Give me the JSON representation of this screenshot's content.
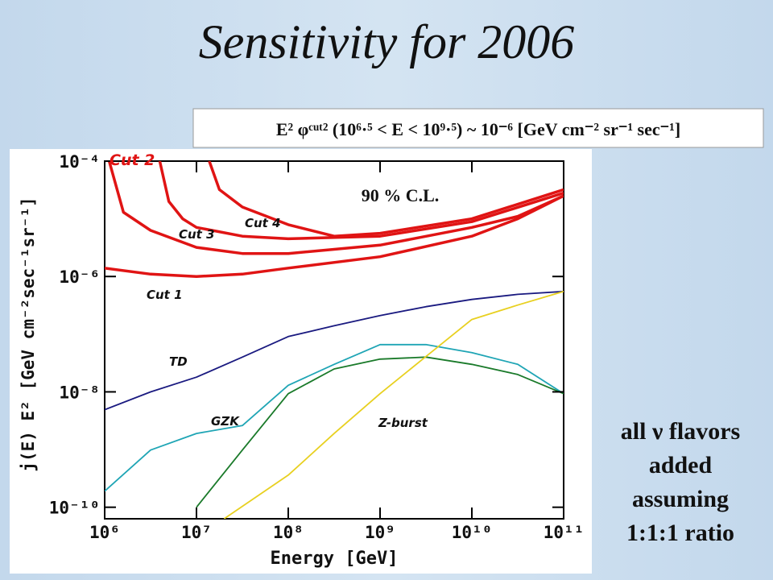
{
  "chart_data": {
    "type": "line",
    "title": "Sensitivity for 2006",
    "subtitle": "E² φᶜᵘᵗ² (10⁶·⁵ < E < 10⁹·⁵) ~ 10⁻⁶ [GeV cm⁻² sr⁻¹ sec⁻¹]",
    "annotation": "90 % C.L.",
    "side_note": [
      "all ν flavors",
      "added",
      "assuming",
      "1:1:1 ratio"
    ],
    "x_label": "Energy [GeV]",
    "y_label": "j(E)  E²  [GeV cm⁻²sec⁻¹sr⁻¹]",
    "log_x": true,
    "log_y": true,
    "xlim": [
      1000000.0,
      100000000000.0
    ],
    "ylim": [
      6.31e-11,
      0.0001
    ],
    "xticks": [
      {
        "value": 1000000.0,
        "label": "10⁶"
      },
      {
        "value": 10000000.0,
        "label": "10⁷"
      },
      {
        "value": 100000000.0,
        "label": "10⁸"
      },
      {
        "value": 1000000000.0,
        "label": "10⁹"
      },
      {
        "value": 10000000000.0,
        "label": "10¹⁰"
      },
      {
        "value": 100000000000.0,
        "label": "10¹¹"
      }
    ],
    "yticks": [
      {
        "value": 1e-10,
        "label": "10⁻¹⁰"
      },
      {
        "value": 1e-08,
        "label": "10⁻⁸"
      },
      {
        "value": 1e-06,
        "label": "10⁻⁶"
      },
      {
        "value": 0.0001,
        "label": "10⁻⁴"
      }
    ],
    "series": [
      {
        "name": "Cut 2",
        "color": "#e01414",
        "x": [
          1120000.0,
          1600000.0,
          3160000.0,
          10000000.0,
          31600000.0,
          100000000.0,
          1000000000.0,
          10000000000.0,
          31600000000.0,
          100000000000.0
        ],
        "values": [
          0.0001,
          1.3e-05,
          6.3e-06,
          3.2e-06,
          2.5e-06,
          2.5e-06,
          3.5e-06,
          7.1e-06,
          1.1e-05,
          2.5e-05
        ]
      },
      {
        "name": "Cut 3",
        "color": "#e01414",
        "x": [
          3980000.0,
          5000000.0,
          7080000.0,
          10000000.0,
          31600000.0,
          100000000.0,
          1000000000.0,
          10000000000.0,
          100000000000.0
        ],
        "values": [
          0.0001,
          2e-05,
          1e-05,
          7.1e-06,
          5e-06,
          4.5e-06,
          5e-06,
          8.9e-06,
          2.8e-05
        ]
      },
      {
        "name": "Cut 4",
        "color": "#e01414",
        "x": [
          13800000.0,
          17800000.0,
          31600000.0,
          100000000.0,
          316000000.0,
          1000000000.0,
          10000000000.0,
          100000000000.0
        ],
        "values": [
          0.0001,
          3.2e-05,
          1.6e-05,
          7.9e-06,
          5e-06,
          5.6e-06,
          1e-05,
          3.2e-05
        ]
      },
      {
        "name": "Cut 1",
        "color": "#e01414",
        "x": [
          1000000.0,
          3160000.0,
          10000000.0,
          31600000.0,
          100000000.0,
          1000000000.0,
          10000000000.0,
          31600000000.0,
          100000000000.0
        ],
        "values": [
          1.4e-06,
          1.1e-06,
          1e-06,
          1.1e-06,
          1.4e-06,
          2.2e-06,
          5e-06,
          1e-05,
          2.5e-05
        ]
      },
      {
        "name": "TD",
        "color": "#1a1a80",
        "x": [
          1000000.0,
          3160000.0,
          10000000.0,
          31600000.0,
          100000000.0,
          316000000.0,
          1000000000.0,
          3160000000.0,
          10000000000.0,
          31600000000.0,
          100000000000.0
        ],
        "values": [
          4.9e-09,
          1e-08,
          1.8e-08,
          4e-08,
          9.1e-08,
          1.4e-07,
          2.1e-07,
          3e-07,
          4e-07,
          4.9e-07,
          5.5e-07
        ]
      },
      {
        "name": "GZK",
        "color": "#1fa5b5",
        "x": [
          1000000.0,
          3160000.0,
          10000000.0,
          31600000.0,
          100000000.0,
          316000000.0,
          1000000000.0,
          3160000000.0,
          10000000000.0,
          31600000000.0,
          100000000000.0
        ],
        "values": [
          1.9e-10,
          9.8e-10,
          1.9e-09,
          2.6e-09,
          1.3e-08,
          3e-08,
          6.6e-08,
          6.6e-08,
          4.8e-08,
          3e-08,
          9.3e-09
        ]
      },
      {
        "name": null,
        "color": "#1a7a2a",
        "x": [
          10000000.0,
          31600000.0,
          100000000.0,
          316000000.0,
          1000000000.0,
          3160000000.0,
          10000000000.0,
          31600000000.0,
          100000000000.0
        ],
        "values": [
          1e-10,
          9.8e-10,
          9.3e-09,
          2.5e-08,
          3.7e-08,
          4e-08,
          3e-08,
          2e-08,
          9.3e-09
        ]
      },
      {
        "name": "Z-burst",
        "color": "#e8d020",
        "x": [
          20000000.0,
          100000000.0,
          316000000.0,
          1000000000.0,
          3160000000.0,
          10000000000.0,
          31600000000.0,
          100000000000.0
        ],
        "values": [
          6.3e-11,
          3.6e-10,
          1.9e-09,
          9.3e-09,
          4.1e-08,
          1.8e-07,
          3.2e-07,
          5.5e-07
        ]
      }
    ]
  }
}
